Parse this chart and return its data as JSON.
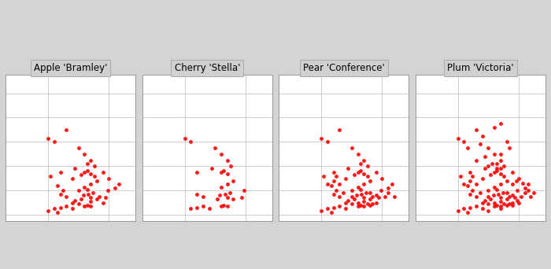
{
  "titles": [
    "Apple 'Bramley'",
    "Cherry 'Stella'",
    "Pear 'Conference'",
    "Plum 'Victoria'"
  ],
  "background_color": "#d4d4d4",
  "panel_bg": "#ffffff",
  "dot_color": "#ff0000",
  "dot_size": 3.5,
  "dot_alpha": 0.9,
  "grid_color": "#bbbbbb",
  "title_fontsize": 8.5,
  "title_bg": "#d0d0d0",
  "lon_range": [
    -8.5,
    2.2
  ],
  "lat_range": [
    49.5,
    61.5
  ],
  "bramley_points": [
    [
      -1.5,
      53.4
    ],
    [
      -2.0,
      53.5
    ],
    [
      -1.8,
      53.6
    ],
    [
      -2.3,
      53.3
    ],
    [
      -1.2,
      53.2
    ],
    [
      -1.0,
      52.8
    ],
    [
      -1.5,
      52.5
    ],
    [
      -2.0,
      52.3
    ],
    [
      -1.8,
      52.1
    ],
    [
      -2.5,
      52.0
    ],
    [
      -1.3,
      51.8
    ],
    [
      -1.7,
      51.7
    ],
    [
      -2.1,
      51.6
    ],
    [
      -0.8,
      51.5
    ],
    [
      -1.5,
      51.4
    ],
    [
      -2.3,
      51.3
    ],
    [
      -1.0,
      51.3
    ],
    [
      -2.8,
      51.2
    ],
    [
      -1.5,
      51.1
    ],
    [
      -0.5,
      51.0
    ],
    [
      -3.0,
      51.0
    ],
    [
      -2.5,
      50.9
    ],
    [
      -1.8,
      50.8
    ],
    [
      -3.5,
      50.7
    ],
    [
      -2.0,
      50.7
    ],
    [
      -4.0,
      50.6
    ],
    [
      -3.0,
      50.5
    ],
    [
      -4.5,
      50.5
    ],
    [
      -5.0,
      50.3
    ],
    [
      -4.2,
      50.2
    ],
    [
      -1.5,
      50.7
    ],
    [
      -0.3,
      51.4
    ],
    [
      -0.1,
      52.0
    ],
    [
      0.5,
      52.2
    ],
    [
      0.8,
      52.5
    ],
    [
      -3.5,
      51.5
    ],
    [
      -4.0,
      51.7
    ],
    [
      -3.8,
      52.0
    ],
    [
      -4.2,
      52.4
    ],
    [
      -3.0,
      53.0
    ],
    [
      -5.0,
      56.3
    ],
    [
      -4.5,
      56.0
    ],
    [
      -3.5,
      57.0
    ],
    [
      -2.5,
      55.5
    ],
    [
      -2.0,
      55.0
    ],
    [
      -1.5,
      54.5
    ],
    [
      -1.2,
      54.0
    ],
    [
      -1.8,
      54.2
    ],
    [
      -0.5,
      53.5
    ],
    [
      0.0,
      53.0
    ],
    [
      -2.8,
      53.8
    ],
    [
      -4.8,
      53.2
    ],
    [
      -4.0,
      53.5
    ]
  ],
  "stella_points": [
    [
      -1.5,
      53.4
    ],
    [
      -2.0,
      53.5
    ],
    [
      -1.8,
      53.6
    ],
    [
      -1.0,
      52.8
    ],
    [
      -1.5,
      52.5
    ],
    [
      -2.0,
      52.3
    ],
    [
      -1.3,
      51.8
    ],
    [
      -1.7,
      51.7
    ],
    [
      -2.1,
      51.6
    ],
    [
      -1.5,
      51.4
    ],
    [
      -2.3,
      51.3
    ],
    [
      -1.0,
      51.3
    ],
    [
      -1.8,
      50.8
    ],
    [
      -3.5,
      50.7
    ],
    [
      -2.0,
      50.7
    ],
    [
      -4.0,
      50.6
    ],
    [
      -3.0,
      50.5
    ],
    [
      -4.5,
      50.5
    ],
    [
      -1.5,
      50.7
    ],
    [
      -0.3,
      51.4
    ],
    [
      -0.1,
      52.0
    ],
    [
      -3.5,
      51.5
    ],
    [
      -4.0,
      51.7
    ],
    [
      -5.0,
      56.3
    ],
    [
      -4.5,
      56.0
    ],
    [
      -2.5,
      55.5
    ],
    [
      -2.0,
      55.0
    ],
    [
      -1.5,
      54.5
    ],
    [
      -1.2,
      54.0
    ],
    [
      -2.8,
      53.8
    ],
    [
      -4.0,
      53.5
    ]
  ],
  "conference_points": [
    [
      -1.5,
      53.4
    ],
    [
      -2.0,
      53.5
    ],
    [
      -1.8,
      53.6
    ],
    [
      -2.3,
      53.3
    ],
    [
      -1.2,
      53.2
    ],
    [
      -1.0,
      52.8
    ],
    [
      -1.5,
      52.5
    ],
    [
      -2.0,
      52.3
    ],
    [
      -1.8,
      52.1
    ],
    [
      -2.5,
      52.0
    ],
    [
      -1.3,
      51.8
    ],
    [
      -1.7,
      51.7
    ],
    [
      -2.1,
      51.6
    ],
    [
      -0.8,
      51.5
    ],
    [
      -1.5,
      51.4
    ],
    [
      -2.3,
      51.3
    ],
    [
      -1.0,
      51.3
    ],
    [
      -2.8,
      51.2
    ],
    [
      -1.5,
      51.1
    ],
    [
      -0.5,
      51.0
    ],
    [
      -3.0,
      51.0
    ],
    [
      -2.5,
      50.9
    ],
    [
      -1.8,
      50.8
    ],
    [
      -3.5,
      50.7
    ],
    [
      -2.0,
      50.7
    ],
    [
      -4.0,
      50.6
    ],
    [
      -3.0,
      50.5
    ],
    [
      -4.5,
      50.5
    ],
    [
      -5.0,
      50.3
    ],
    [
      -4.2,
      50.2
    ],
    [
      -1.5,
      50.7
    ],
    [
      -0.3,
      51.4
    ],
    [
      -0.1,
      52.0
    ],
    [
      0.5,
      52.2
    ],
    [
      0.8,
      52.5
    ],
    [
      -3.5,
      51.5
    ],
    [
      -4.0,
      51.7
    ],
    [
      -3.8,
      52.0
    ],
    [
      -4.2,
      52.4
    ],
    [
      -3.0,
      53.0
    ],
    [
      -5.0,
      56.3
    ],
    [
      -4.5,
      56.0
    ],
    [
      -3.5,
      57.0
    ],
    [
      -2.5,
      55.5
    ],
    [
      -2.0,
      55.0
    ],
    [
      -1.5,
      54.5
    ],
    [
      -1.2,
      54.0
    ],
    [
      -1.8,
      54.2
    ],
    [
      -0.5,
      53.5
    ],
    [
      0.0,
      53.0
    ],
    [
      -2.8,
      53.8
    ],
    [
      -4.8,
      53.2
    ],
    [
      -4.0,
      53.5
    ],
    [
      -1.0,
      51.8
    ],
    [
      -0.5,
      51.6
    ],
    [
      0.2,
      51.5
    ],
    [
      0.5,
      51.8
    ],
    [
      1.0,
      51.5
    ],
    [
      -1.2,
      50.9
    ],
    [
      -1.0,
      50.8
    ],
    [
      -0.8,
      50.9
    ],
    [
      -2.0,
      51.0
    ],
    [
      -2.5,
      51.5
    ],
    [
      -3.2,
      51.8
    ],
    [
      -3.5,
      52.5
    ],
    [
      -4.0,
      52.8
    ],
    [
      -4.5,
      52.5
    ],
    [
      -3.8,
      53.2
    ]
  ],
  "victoria_points": [
    [
      -1.5,
      53.4
    ],
    [
      -2.0,
      53.5
    ],
    [
      -1.8,
      53.6
    ],
    [
      -2.3,
      53.3
    ],
    [
      -1.2,
      53.2
    ],
    [
      -1.0,
      52.8
    ],
    [
      -1.5,
      52.5
    ],
    [
      -2.0,
      52.3
    ],
    [
      -1.8,
      52.1
    ],
    [
      -2.5,
      52.0
    ],
    [
      -1.3,
      51.8
    ],
    [
      -1.7,
      51.7
    ],
    [
      -2.1,
      51.6
    ],
    [
      -0.8,
      51.5
    ],
    [
      -1.5,
      51.4
    ],
    [
      -2.3,
      51.3
    ],
    [
      -1.0,
      51.3
    ],
    [
      -2.8,
      51.2
    ],
    [
      -1.5,
      51.1
    ],
    [
      -0.5,
      51.0
    ],
    [
      -3.0,
      51.0
    ],
    [
      -2.5,
      50.9
    ],
    [
      -1.8,
      50.8
    ],
    [
      -3.5,
      50.7
    ],
    [
      -2.0,
      50.7
    ],
    [
      -4.0,
      50.6
    ],
    [
      -3.0,
      50.5
    ],
    [
      -4.5,
      50.5
    ],
    [
      -5.0,
      50.3
    ],
    [
      -4.2,
      50.2
    ],
    [
      -1.5,
      50.7
    ],
    [
      -0.3,
      51.4
    ],
    [
      -0.1,
      52.0
    ],
    [
      0.5,
      52.2
    ],
    [
      0.8,
      52.5
    ],
    [
      -3.5,
      51.5
    ],
    [
      -4.0,
      51.7
    ],
    [
      -3.8,
      52.0
    ],
    [
      -4.2,
      52.4
    ],
    [
      -3.0,
      53.0
    ],
    [
      -5.0,
      56.3
    ],
    [
      -4.5,
      56.0
    ],
    [
      -3.5,
      57.0
    ],
    [
      -2.5,
      55.5
    ],
    [
      -2.0,
      55.0
    ],
    [
      -1.5,
      54.5
    ],
    [
      -1.2,
      54.0
    ],
    [
      -1.8,
      54.2
    ],
    [
      -0.5,
      53.5
    ],
    [
      0.0,
      53.0
    ],
    [
      -2.8,
      53.8
    ],
    [
      -4.8,
      53.2
    ],
    [
      -4.0,
      53.5
    ],
    [
      -1.0,
      51.8
    ],
    [
      -0.5,
      51.6
    ],
    [
      0.2,
      51.5
    ],
    [
      0.5,
      51.8
    ],
    [
      1.0,
      51.5
    ],
    [
      -1.2,
      50.9
    ],
    [
      -1.0,
      50.8
    ],
    [
      -0.8,
      50.9
    ],
    [
      -2.0,
      51.0
    ],
    [
      -2.5,
      51.5
    ],
    [
      -3.2,
      51.8
    ],
    [
      -3.5,
      52.5
    ],
    [
      -4.0,
      52.8
    ],
    [
      -4.5,
      52.5
    ],
    [
      -3.8,
      53.2
    ],
    [
      -0.2,
      52.8
    ],
    [
      0.3,
      52.6
    ],
    [
      0.8,
      52.0
    ],
    [
      1.2,
      51.8
    ],
    [
      -0.5,
      52.5
    ],
    [
      -1.8,
      53.8
    ],
    [
      -2.5,
      54.0
    ],
    [
      -1.5,
      55.0
    ],
    [
      -0.8,
      55.5
    ],
    [
      -1.0,
      56.0
    ],
    [
      -3.2,
      55.8
    ],
    [
      -4.2,
      55.5
    ],
    [
      -3.0,
      56.5
    ],
    [
      -2.0,
      57.2
    ],
    [
      -1.5,
      57.5
    ],
    [
      -3.5,
      54.5
    ],
    [
      -2.8,
      54.8
    ],
    [
      -2.2,
      54.2
    ],
    [
      -1.5,
      53.8
    ],
    [
      -0.1,
      51.2
    ],
    [
      0.0,
      51.0
    ],
    [
      -0.5,
      50.8
    ],
    [
      -1.5,
      50.5
    ],
    [
      -2.5,
      50.3
    ]
  ]
}
